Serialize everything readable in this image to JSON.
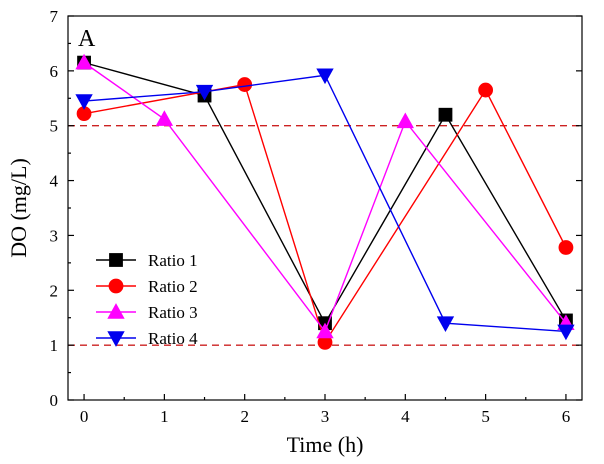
{
  "chart_data": {
    "type": "line",
    "panel_label": "A",
    "xlabel": "Time (h)",
    "ylabel": "DO (mg/L)",
    "xlim": [
      -0.2,
      6.2
    ],
    "ylim": [
      0,
      7
    ],
    "xticks": [
      0,
      1,
      2,
      3,
      4,
      5,
      6
    ],
    "yticks": [
      0,
      1,
      2,
      3,
      4,
      5,
      6,
      7
    ],
    "reference_lines": [
      {
        "y": 5,
        "color": "#cc2222",
        "style": "dashed"
      },
      {
        "y": 1,
        "color": "#cc2222",
        "style": "dashed"
      }
    ],
    "legend_position": "lower-left",
    "series": [
      {
        "name": "Ratio 1",
        "color": "#000000",
        "marker": "square",
        "x": [
          0,
          1.5,
          3,
          4.5,
          6
        ],
        "y": [
          6.15,
          5.55,
          1.4,
          5.2,
          1.45
        ]
      },
      {
        "name": "Ratio 2",
        "color": "#ff0000",
        "marker": "circle",
        "x": [
          0,
          2,
          3,
          5,
          6
        ],
        "y": [
          5.22,
          5.75,
          1.05,
          5.65,
          2.78
        ]
      },
      {
        "name": "Ratio 3",
        "color": "#ff00ff",
        "marker": "triangle-up",
        "x": [
          0,
          1,
          3,
          4,
          6
        ],
        "y": [
          6.15,
          5.12,
          1.25,
          5.08,
          1.4
        ]
      },
      {
        "name": "Ratio 4",
        "color": "#0000ee",
        "marker": "triangle-down",
        "x": [
          0,
          1.5,
          3,
          4.5,
          6
        ],
        "y": [
          5.45,
          5.62,
          5.92,
          1.4,
          1.25
        ]
      }
    ]
  }
}
